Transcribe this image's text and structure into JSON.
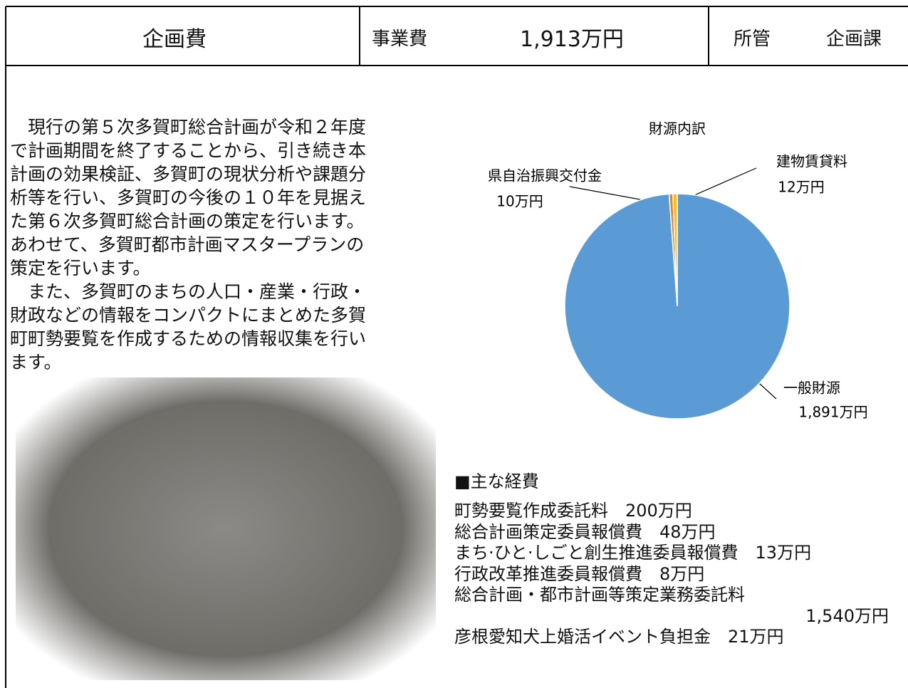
{
  "header": {
    "title": "企画費",
    "cost_label": "事業費",
    "cost": "1,913万円",
    "dept_label": "所管",
    "dept": "企画課"
  },
  "body": {
    "lines": [
      "　現行の第５次多賀町総合計画が令和２年度",
      "で計画期間を終了することから、引き続き本",
      "計画の効果検証、多賀町の現状分析や課題分",
      "析等を行い、多賀町の今後の１０年を見据え",
      "た第６次多賀町総合計画の策定を行います。",
      "あわせて、多賀町都市計画マスタープランの",
      "策定を行います。",
      "　また、多賀町のまちの人口・産業・行政・",
      "財政などの情報をコンパクトにまとめた多賀",
      "町町勢要覧を作成するための情報収集を行い",
      "ます。"
    ]
  },
  "chart_data": {
    "type": "pie",
    "title": "財源内訳",
    "categories": [
      "一般財源",
      "県自治振興交付金",
      "建物賃貸料"
    ],
    "values": [
      1891,
      10,
      12
    ],
    "value_labels": [
      "1,891万円",
      "10万円",
      "12万円"
    ],
    "colors": [
      "#5b9bd5",
      "#ed7d31",
      "#ffc000"
    ]
  },
  "expenses": {
    "heading": "■主な経費",
    "lines": [
      "町勢要覧作成委託料　200万円",
      "総合計画策定委員報償費　48万円",
      "まち·ひと·しごと創生推進委員報償費　13万円",
      "行政改革推進委員報償費　8万円",
      "総合計画・都市計画等策定業務委託料",
      "1,540万円",
      "彦根愛知犬上婚活イベント負担金　21万円"
    ]
  }
}
